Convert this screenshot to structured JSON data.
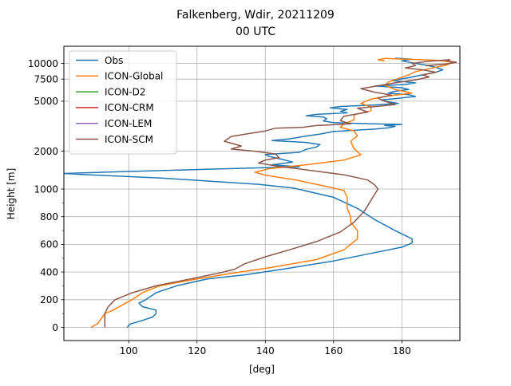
{
  "chart_data": {
    "type": "line",
    "title_line1": "Falkenberg, Wdir, 20211209",
    "title_line2": "00 UTC",
    "xlabel": "[deg]",
    "ylabel": "Height [m]",
    "xlim": [
      81,
      197
    ],
    "x_ticks": [
      100,
      120,
      140,
      160,
      180
    ],
    "y_scale": "piecewise: linear 0-1000 m, logarithmic above 1000 m",
    "y_ticks": [
      0,
      200,
      400,
      600,
      800,
      1000,
      2000,
      5000,
      7500,
      10000
    ],
    "y_minor_ticks": [
      100,
      300,
      500,
      700,
      900
    ],
    "grid": true,
    "legend_position": "upper-left",
    "legend": [
      "Obs",
      "ICON-Global",
      "ICON-D2",
      "ICON-CRM",
      "ICON-LEM",
      "ICON-SCM"
    ],
    "series": [
      {
        "name": "Obs",
        "color": "#1f77b4",
        "points": [
          [
            99.5,
            0
          ],
          [
            100.5,
            25
          ],
          [
            104,
            50
          ],
          [
            107,
            75
          ],
          [
            108,
            100
          ],
          [
            108,
            125
          ],
          [
            104,
            150
          ],
          [
            103,
            175
          ],
          [
            105,
            200
          ],
          [
            108,
            250
          ],
          [
            114,
            300
          ],
          [
            123,
            350
          ],
          [
            134,
            380
          ],
          [
            145,
            420
          ],
          [
            160,
            480
          ],
          [
            172,
            540
          ],
          [
            180,
            580
          ],
          [
            183,
            610
          ],
          [
            183,
            640
          ],
          [
            178,
            700
          ],
          [
            172,
            780
          ],
          [
            167,
            860
          ],
          [
            160,
            940
          ],
          [
            148,
            1020
          ],
          [
            138,
            1090
          ],
          [
            110,
            1220
          ],
          [
            88,
            1300
          ],
          [
            81,
            1330
          ],
          [
            100,
            1380
          ],
          [
            140,
            1480
          ],
          [
            150,
            1500
          ],
          [
            142,
            1560
          ],
          [
            148,
            1640
          ],
          [
            145,
            1720
          ],
          [
            141,
            1820
          ],
          [
            140,
            1880
          ],
          [
            150,
            1960
          ],
          [
            152,
            2070
          ],
          [
            155,
            2160
          ],
          [
            156,
            2260
          ],
          [
            152,
            2350
          ],
          [
            142,
            2430
          ],
          [
            147,
            2510
          ],
          [
            152,
            2640
          ],
          [
            156,
            2740
          ],
          [
            160,
            2870
          ],
          [
            172,
            3000
          ],
          [
            176,
            3070
          ],
          [
            178,
            3150
          ],
          [
            175,
            3210
          ],
          [
            180,
            3270
          ],
          [
            170,
            3310
          ],
          [
            160,
            3380
          ],
          [
            157,
            3480
          ],
          [
            158,
            3630
          ],
          [
            157,
            3740
          ],
          [
            152,
            3830
          ],
          [
            155,
            3930
          ],
          [
            164,
            4040
          ],
          [
            162,
            4150
          ],
          [
            164,
            4300
          ],
          [
            159,
            4420
          ],
          [
            162,
            4540
          ],
          [
            172,
            4670
          ],
          [
            179,
            4800
          ],
          [
            176,
            4950
          ],
          [
            174,
            5130
          ],
          [
            179,
            5280
          ],
          [
            184,
            5450
          ],
          [
            182,
            5640
          ],
          [
            176,
            5790
          ],
          [
            178,
            6000
          ],
          [
            182,
            6200
          ],
          [
            180,
            6400
          ],
          [
            172,
            6600
          ],
          [
            181,
            6800
          ],
          [
            184,
            7000
          ],
          [
            177,
            7300
          ],
          [
            182,
            7700
          ],
          [
            186,
            8100
          ],
          [
            190,
            8500
          ],
          [
            192,
            8900
          ],
          [
            190,
            9300
          ],
          [
            187,
            9700
          ],
          [
            183,
            10100
          ],
          [
            180,
            10500
          ],
          [
            183,
            10800
          ],
          [
            178,
            11000
          ]
        ]
      },
      {
        "name": "ICON-Global",
        "color": "#ff7f0e",
        "points": [
          [
            89,
            0
          ],
          [
            91,
            30
          ],
          [
            93,
            100
          ],
          [
            95,
            120
          ],
          [
            101,
            200
          ],
          [
            104,
            250
          ],
          [
            109,
            300
          ],
          [
            120,
            350
          ],
          [
            130,
            390
          ],
          [
            141,
            430
          ],
          [
            155,
            490
          ],
          [
            163,
            560
          ],
          [
            167,
            640
          ],
          [
            167,
            700
          ],
          [
            165,
            760
          ],
          [
            165,
            800
          ],
          [
            164,
            860
          ],
          [
            164,
            940
          ],
          [
            163,
            990
          ],
          [
            157,
            1060
          ],
          [
            149,
            1180
          ],
          [
            140,
            1290
          ],
          [
            137,
            1360
          ],
          [
            141,
            1450
          ],
          [
            152,
            1560
          ],
          [
            163,
            1700
          ],
          [
            168,
            1870
          ],
          [
            166,
            2100
          ],
          [
            165,
            2400
          ],
          [
            167,
            2650
          ],
          [
            166,
            2900
          ],
          [
            162,
            3100
          ],
          [
            163,
            3300
          ],
          [
            166,
            3550
          ],
          [
            166,
            3900
          ],
          [
            171,
            4200
          ],
          [
            171,
            4500
          ],
          [
            168,
            4800
          ],
          [
            171,
            5200
          ],
          [
            176,
            5500
          ],
          [
            183,
            5800
          ],
          [
            178,
            6200
          ],
          [
            175,
            6700
          ],
          [
            176,
            7100
          ],
          [
            179,
            7600
          ],
          [
            182,
            8100
          ],
          [
            184,
            8600
          ],
          [
            189,
            9200
          ],
          [
            193,
            9700
          ],
          [
            195,
            10200
          ],
          [
            190,
            10600
          ],
          [
            181,
            10800
          ],
          [
            175,
            10950
          ],
          [
            173,
            10700
          ],
          [
            175,
            10450
          ]
        ]
      },
      {
        "name": "ICON-D2",
        "color": "#2ca02c",
        "points": []
      },
      {
        "name": "ICON-CRM",
        "color": "#d62728",
        "points": []
      },
      {
        "name": "ICON-LEM",
        "color": "#9467bd",
        "points": []
      },
      {
        "name": "ICON-SCM",
        "color": "#8c564b",
        "points": [
          [
            93,
            0
          ],
          [
            93,
            25
          ],
          [
            93,
            50
          ],
          [
            93,
            100
          ],
          [
            94,
            150
          ],
          [
            96,
            200
          ],
          [
            101,
            250
          ],
          [
            108,
            300
          ],
          [
            118,
            350
          ],
          [
            126,
            390
          ],
          [
            131,
            420
          ],
          [
            134,
            460
          ],
          [
            140,
            510
          ],
          [
            147,
            560
          ],
          [
            155,
            620
          ],
          [
            162,
            690
          ],
          [
            166,
            760
          ],
          [
            169,
            840
          ],
          [
            171,
            920
          ],
          [
            173,
            1000
          ],
          [
            172,
            1080
          ],
          [
            170,
            1180
          ],
          [
            163,
            1300
          ],
          [
            152,
            1420
          ],
          [
            144,
            1510
          ],
          [
            138,
            1610
          ],
          [
            140,
            1700
          ],
          [
            144,
            1780
          ],
          [
            143,
            1900
          ],
          [
            137,
            2000
          ],
          [
            130,
            2080
          ],
          [
            133,
            2200
          ],
          [
            128,
            2400
          ],
          [
            130,
            2620
          ],
          [
            135,
            2760
          ],
          [
            140,
            2900
          ],
          [
            143,
            3050
          ],
          [
            151,
            3100
          ],
          [
            155,
            3200
          ],
          [
            160,
            3250
          ],
          [
            165,
            3300
          ],
          [
            162,
            3500
          ],
          [
            163,
            3800
          ],
          [
            170,
            4100
          ],
          [
            167,
            4400
          ],
          [
            178,
            4700
          ],
          [
            175,
            5000
          ],
          [
            173,
            5300
          ],
          [
            177,
            5600
          ],
          [
            172,
            5900
          ],
          [
            168,
            6300
          ],
          [
            174,
            6700
          ],
          [
            178,
            7000
          ],
          [
            184,
            7400
          ],
          [
            188,
            7800
          ],
          [
            186,
            8100
          ],
          [
            190,
            8500
          ],
          [
            186,
            8900
          ],
          [
            181,
            9200
          ],
          [
            184,
            9600
          ],
          [
            183,
            10000
          ],
          [
            188,
            10400
          ],
          [
            194,
            10700
          ],
          [
            193,
            10500
          ],
          [
            196,
            10200
          ],
          [
            193,
            9900
          ],
          [
            187,
            9600
          ]
        ]
      }
    ]
  }
}
